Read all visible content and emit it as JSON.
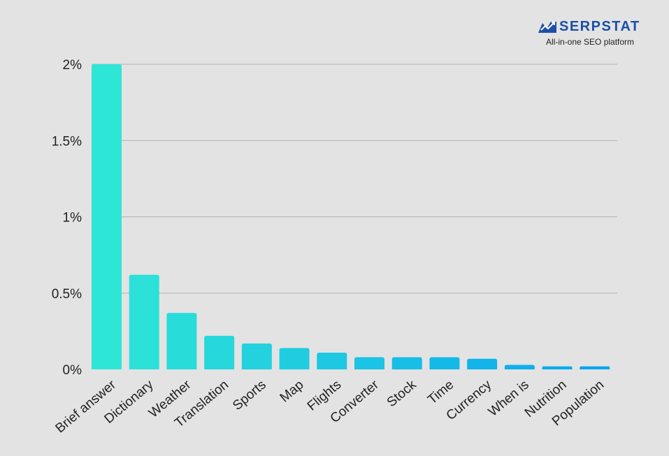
{
  "brand": {
    "name": "SERPSTAT",
    "tagline": "All-in-one SEO platform",
    "logo_icon": "serpstat-chart-icon",
    "color": "#1c4fa8"
  },
  "chart_data": {
    "type": "bar",
    "categories": [
      "Brief answer",
      "Dictionary",
      "Weather",
      "Translation",
      "Sports",
      "Map",
      "Flights",
      "Converter",
      "Stock",
      "Time",
      "Currency",
      "When is",
      "Nutrition",
      "Population"
    ],
    "values": [
      2.0,
      0.62,
      0.37,
      0.22,
      0.17,
      0.14,
      0.11,
      0.08,
      0.08,
      0.08,
      0.07,
      0.03,
      0.02,
      0.02
    ],
    "ytick_values": [
      0,
      0.5,
      1,
      1.5,
      2
    ],
    "ytick_labels": [
      "0%",
      "0.5%",
      "1%",
      "1.5%",
      "2%"
    ],
    "ylim": [
      0,
      2
    ],
    "grid": true,
    "bar_color_start": "#2ee6d6",
    "bar_color_end": "#0aa5f0"
  }
}
